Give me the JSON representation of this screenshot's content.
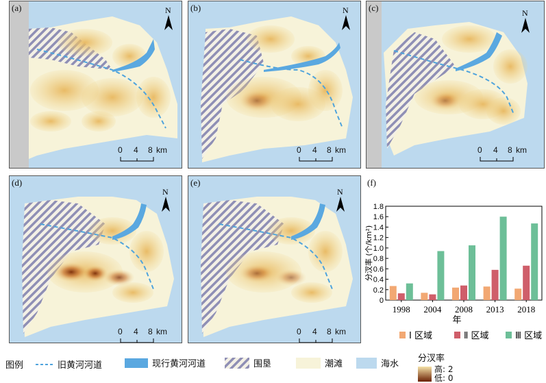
{
  "panels": [
    {
      "label": "(a)"
    },
    {
      "label": "(b)"
    },
    {
      "label": "(c)"
    },
    {
      "label": "(d)"
    },
    {
      "label": "(e)"
    }
  ],
  "chart_panel_label": "(f)",
  "north_label": "N",
  "scale": {
    "t0": "0",
    "t4": "4",
    "t8": "8",
    "unit": "km"
  },
  "colors": {
    "sea": "#bcd9ee",
    "tidal_flat": "#f7f3d9",
    "old_channel": "#4ea3dc",
    "current_channel": "#5aa8e0",
    "reclaim_stripe": "#8f8fb5",
    "density_low": "#f0d48a",
    "density_high": "#7a2a05",
    "bar_I": "#f2a873",
    "bar_II": "#cf5e6a",
    "bar_III": "#6dbf98"
  },
  "legend": {
    "title": "图例",
    "old_channel": "旧黄河河道",
    "current_channel": "现行黄河河道",
    "reclaim": "围垦",
    "tidal_flat": "潮滩",
    "sea": "海水",
    "density_title": "分汊率",
    "high": "高: 2",
    "low": "低: 0"
  },
  "chart_data": {
    "type": "bar",
    "categories": [
      "1998",
      "2004",
      "2008",
      "2013",
      "2018"
    ],
    "series": [
      {
        "name": "Ⅰ区域",
        "values": [
          0.27,
          0.14,
          0.24,
          0.26,
          0.22
        ]
      },
      {
        "name": "Ⅱ区域",
        "values": [
          0.13,
          0.11,
          0.28,
          0.58,
          0.66
        ]
      },
      {
        "name": "Ⅲ区域",
        "values": [
          0.32,
          0.94,
          1.05,
          1.6,
          1.47
        ]
      }
    ],
    "xlabel": "年",
    "ylabel": "分汊率 (个/km²)",
    "ylim": [
      0,
      1.8
    ],
    "yticks": [
      "0",
      "0.2",
      "0.4",
      "0.6",
      "0.8",
      "1.0",
      "1.2",
      "1.4",
      "1.6",
      "1.8"
    ],
    "legend_labels": [
      "Ⅰ 区域",
      "Ⅱ 区域",
      "Ⅲ 区域"
    ],
    "grid": false
  }
}
